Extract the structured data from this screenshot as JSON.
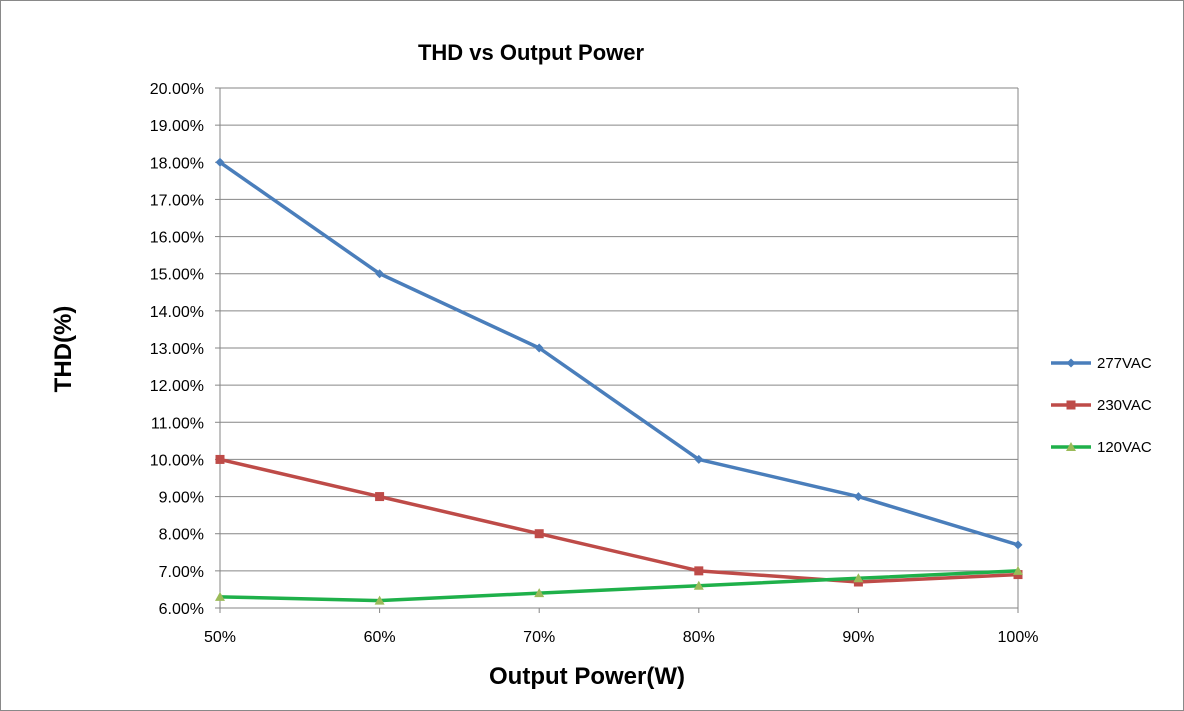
{
  "chart_data": {
    "type": "line",
    "title": "THD vs Output Power",
    "xlabel": "Output Power(W)",
    "ylabel": "THD(%)",
    "categories": [
      "50%",
      "60%",
      "70%",
      "80%",
      "90%",
      "100%"
    ],
    "ylim": [
      6,
      20
    ],
    "ystep": 1,
    "ytick_labels": [
      "6.00%",
      "7.00%",
      "8.00%",
      "9.00%",
      "10.00%",
      "11.00%",
      "12.00%",
      "13.00%",
      "14.00%",
      "15.00%",
      "16.00%",
      "17.00%",
      "18.00%",
      "19.00%",
      "20.00%"
    ],
    "grid": "horizontal",
    "legend_position": "right",
    "series": [
      {
        "name": "277VAC",
        "color": "#4a7ebb",
        "marker": "diamond",
        "values": [
          18.0,
          15.0,
          13.0,
          10.0,
          9.0,
          7.7
        ]
      },
      {
        "name": "230VAC",
        "color": "#be4b48",
        "marker": "square",
        "values": [
          10.0,
          9.0,
          8.0,
          7.0,
          6.7,
          6.9
        ]
      },
      {
        "name": "120VAC",
        "color": "#1fb04a",
        "marker": "triangle",
        "marker_color": "#9bbb59",
        "values": [
          6.3,
          6.2,
          6.4,
          6.6,
          6.8,
          7.0
        ]
      }
    ]
  }
}
